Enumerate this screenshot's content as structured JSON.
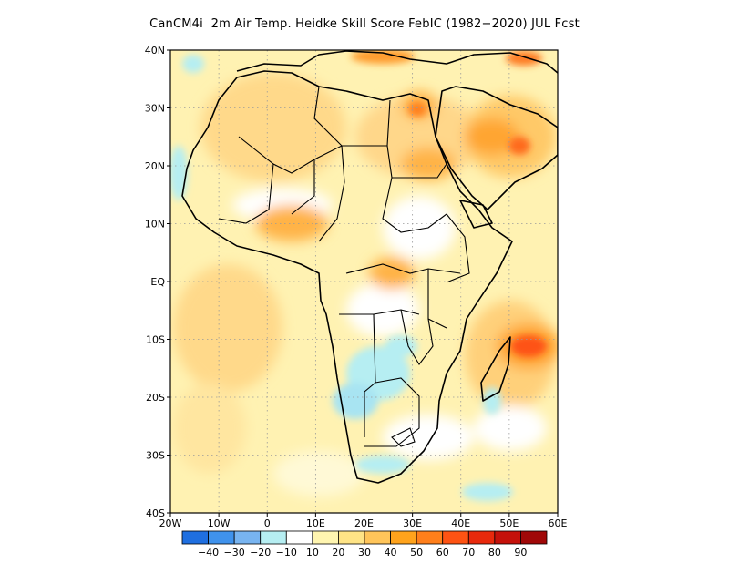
{
  "title": "CanCM4i  2m Air Temp. Heidke Skill Score FebIC (1982−2020) JUL Fcst",
  "map": {
    "lon_range": [
      -20,
      60
    ],
    "lat_range": [
      -40,
      40
    ],
    "lat_ticks": [
      {
        "value": 40,
        "label": "40N"
      },
      {
        "value": 30,
        "label": "30N"
      },
      {
        "value": 20,
        "label": "20N"
      },
      {
        "value": 10,
        "label": "10N"
      },
      {
        "value": 0,
        "label": "EQ"
      },
      {
        "value": -10,
        "label": "10S"
      },
      {
        "value": -20,
        "label": "20S"
      },
      {
        "value": -30,
        "label": "30S"
      },
      {
        "value": -40,
        "label": "40S"
      }
    ],
    "lon_ticks": [
      {
        "value": -20,
        "label": "20W"
      },
      {
        "value": -10,
        "label": "10W"
      },
      {
        "value": 0,
        "label": "0"
      },
      {
        "value": 10,
        "label": "10E"
      },
      {
        "value": 20,
        "label": "20E"
      },
      {
        "value": 30,
        "label": "30E"
      },
      {
        "value": 40,
        "label": "40E"
      },
      {
        "value": 50,
        "label": "50E"
      },
      {
        "value": 60,
        "label": "60E"
      }
    ],
    "grid": "dotted"
  },
  "colorbar": {
    "colors": [
      "#1f6fe0",
      "#3f92ec",
      "#78b4f0",
      "#b6eef2",
      "#ffffff",
      "#fff5b0",
      "#ffe486",
      "#ffc55a",
      "#ffa31c",
      "#ff7f1b",
      "#fe5313",
      "#e8290c",
      "#c5110a",
      "#a00808"
    ],
    "labels": [
      "−40",
      "−30",
      "−20",
      "−10",
      "10",
      "20",
      "30",
      "40",
      "50",
      "60",
      "70",
      "80",
      "90"
    ]
  }
}
